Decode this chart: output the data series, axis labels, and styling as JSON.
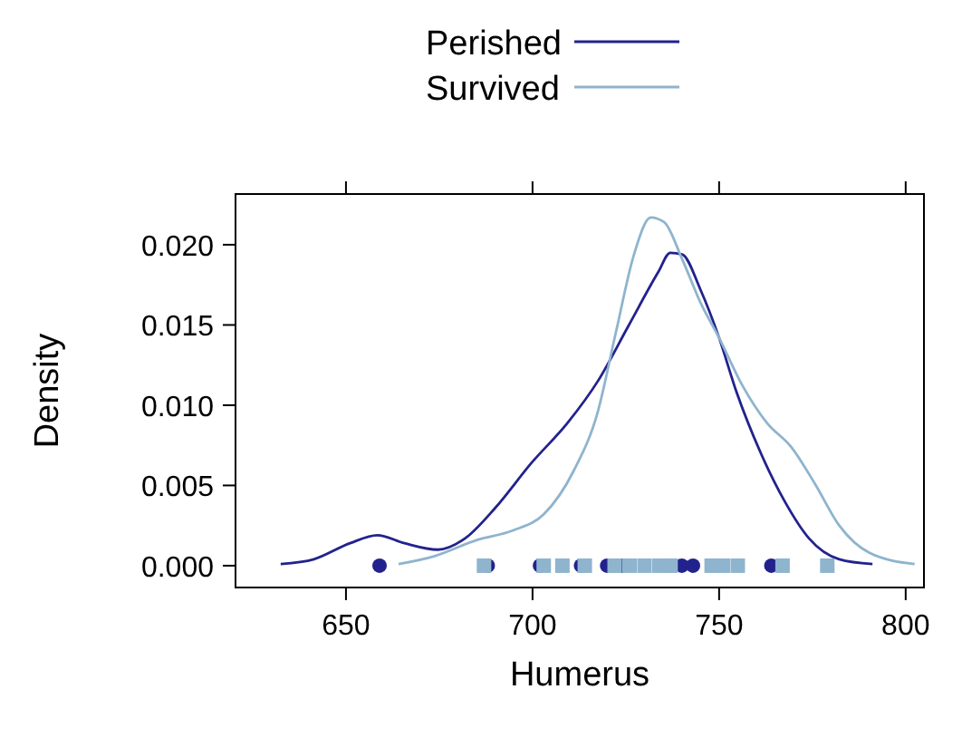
{
  "chart_data": {
    "type": "line",
    "xlabel": "Humerus",
    "ylabel": "Density",
    "xlim": [
      620.4,
      804.9
    ],
    "ylim": [
      -0.00136,
      0.02316
    ],
    "xticks": [
      650,
      700,
      750,
      800
    ],
    "yticks": [
      {
        "value": 0,
        "label": "0.000"
      },
      {
        "value": 0.005,
        "label": "0.005"
      },
      {
        "value": 0.01,
        "label": "0.010"
      },
      {
        "value": 0.015,
        "label": "0.015"
      },
      {
        "value": 0.02,
        "label": "0.020"
      }
    ],
    "legend": "top",
    "grid": false,
    "series": [
      {
        "name": "Perished",
        "color": "#22228e",
        "marker": "none",
        "x": [
          632.5,
          641.4,
          651.1,
          658.4,
          665.7,
          674.6,
          681.9,
          690,
          699.7,
          709.4,
          717.5,
          725.6,
          733.7,
          736.9,
          740.1,
          745,
          750,
          754.7,
          761.2,
          767.6,
          774.1,
          782.2,
          791.1
        ],
        "values": [
          0.0001,
          0.0004,
          0.0014,
          0.0019,
          0.0014,
          0.001,
          0.0017,
          0.0036,
          0.0064,
          0.0089,
          0.0115,
          0.0149,
          0.0183,
          0.0195,
          0.0194,
          0.0172,
          0.0142,
          0.0108,
          0.007,
          0.004,
          0.0017,
          0.0004,
          0.0001
        ]
      },
      {
        "name": "Survived",
        "color": "#8fb4cd",
        "marker": "none",
        "x": [
          664.1,
          673.8,
          685.1,
          694.8,
          703,
          711,
          717.5,
          722.3,
          727.2,
          731.7,
          735.3,
          740.1,
          745,
          750,
          756.3,
          762.8,
          769.3,
          775.7,
          782.2,
          790.3,
          802.4
        ],
        "values": [
          0.0001,
          0.0006,
          0.0016,
          0.0022,
          0.0032,
          0.0059,
          0.0096,
          0.0145,
          0.0194,
          0.0217,
          0.0214,
          0.0191,
          0.0164,
          0.0142,
          0.0112,
          0.0089,
          0.0074,
          0.0051,
          0.0025,
          0.0008,
          0.0001
        ]
      },
      {
        "type": "scatter",
        "color": "#22228e",
        "marker": "circle",
        "x": [
          659,
          688,
          702,
          713,
          720,
          724,
          740,
          743,
          764
        ],
        "values": [
          0,
          0,
          0,
          0,
          0,
          0,
          0,
          0,
          0
        ]
      },
      {
        "type": "scatter",
        "color": "#8fb4cd",
        "marker": "square",
        "x": [
          687,
          703,
          708,
          714,
          722,
          726,
          730,
          734,
          737,
          748,
          751,
          755,
          767,
          779
        ],
        "values": [
          0,
          0,
          0,
          0,
          0,
          0,
          0,
          0,
          0,
          0,
          0,
          0,
          0,
          0
        ]
      }
    ]
  }
}
